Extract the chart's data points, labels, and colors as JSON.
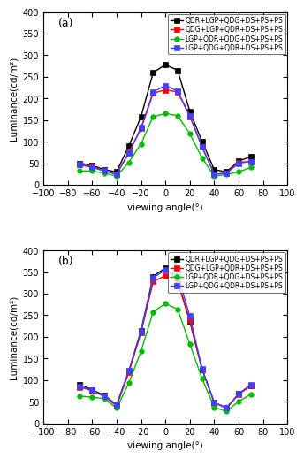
{
  "angles": [
    -70,
    -60,
    -50,
    -40,
    -30,
    -20,
    -10,
    0,
    10,
    20,
    30,
    40,
    50,
    60,
    70
  ],
  "panel_a": {
    "series": [
      {
        "label": "QDR+LGP+QDG+DS+PS+PS",
        "color": "#000000",
        "marker": "s",
        "values": [
          50,
          45,
          35,
          30,
          90,
          158,
          260,
          278,
          265,
          170,
          100,
          35,
          30,
          55,
          65
        ]
      },
      {
        "label": "QDG+LGP+QDR+DS+PS+PS",
        "color": "#ff0000",
        "marker": "s",
        "values": [
          47,
          42,
          32,
          25,
          75,
          130,
          212,
          220,
          215,
          158,
          88,
          25,
          27,
          52,
          54
        ]
      },
      {
        "label": "LGP+QDR+QDG+DS+PS+PS",
        "color": "#00bb00",
        "marker": "o",
        "values": [
          32,
          32,
          27,
          20,
          52,
          95,
          158,
          165,
          160,
          118,
          62,
          20,
          24,
          30,
          40
        ]
      },
      {
        "label": "LGP+QDG+QDR+DS+PS+PS",
        "color": "#4040ff",
        "marker": "s",
        "values": [
          46,
          40,
          32,
          24,
          73,
          132,
          215,
          230,
          217,
          160,
          87,
          24,
          27,
          50,
          54
        ]
      }
    ]
  },
  "panel_b": {
    "series": [
      {
        "label": "QDR+LGP+QDG+DS+PS+PS",
        "color": "#000000",
        "marker": "s",
        "values": [
          90,
          77,
          65,
          42,
          120,
          215,
          340,
          360,
          330,
          235,
          125,
          48,
          35,
          68,
          87
        ]
      },
      {
        "label": "QDG+LGP+QDR+DS+PS+PS",
        "color": "#ff0000",
        "marker": "s",
        "values": [
          84,
          75,
          62,
          40,
          117,
          210,
          328,
          342,
          328,
          238,
          125,
          47,
          35,
          67,
          88
        ]
      },
      {
        "label": "LGP+QDR+QDG+DS+PS+PS",
        "color": "#00bb00",
        "marker": "o",
        "values": [
          63,
          60,
          57,
          35,
          93,
          167,
          258,
          277,
          264,
          183,
          103,
          37,
          27,
          51,
          67
        ]
      },
      {
        "label": "LGP+QDG+QDR+DS+PS+PS",
        "color": "#4040ff",
        "marker": "s",
        "values": [
          85,
          76,
          63,
          43,
          122,
          212,
          337,
          355,
          343,
          248,
          126,
          48,
          36,
          68,
          90
        ]
      }
    ]
  },
  "xlabel": "viewing angle(°)",
  "ylabel": "Luminance(cd/m²)",
  "xlim": [
    -100,
    100
  ],
  "ylim": [
    0,
    400
  ],
  "yticks": [
    0,
    50,
    100,
    150,
    200,
    250,
    300,
    350,
    400
  ],
  "xticks": [
    -100,
    -80,
    -60,
    -40,
    -20,
    0,
    20,
    40,
    60,
    80,
    100
  ],
  "markersize": 4,
  "linewidth": 1.0,
  "fontsize_label": 7.5,
  "fontsize_tick": 7,
  "fontsize_legend": 5.5
}
